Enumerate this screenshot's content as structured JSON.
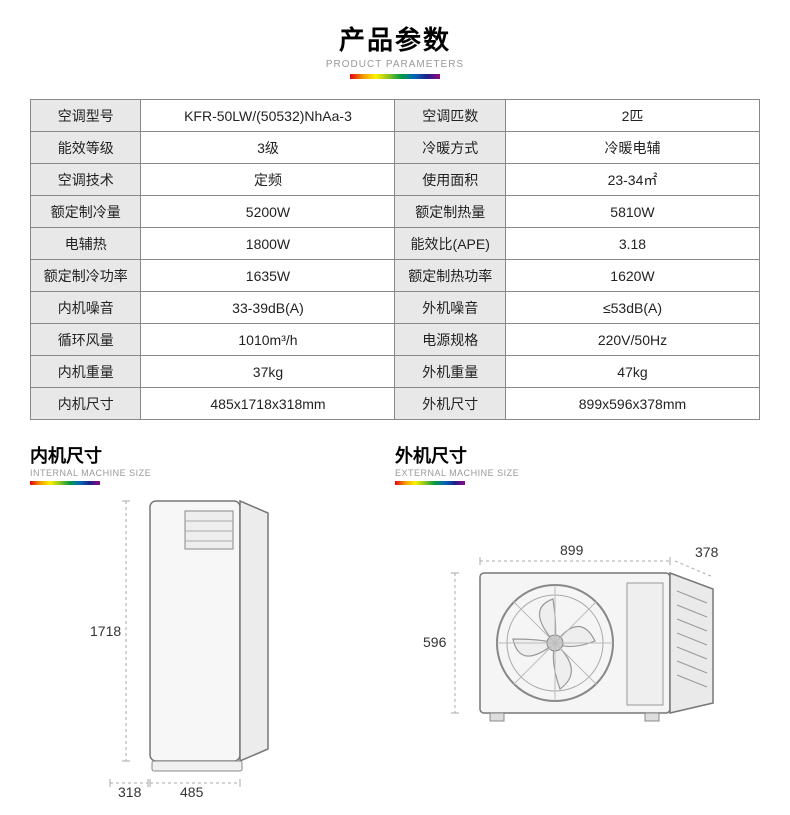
{
  "header": {
    "title_cn": "产品参数",
    "title_en": "PRODUCT PARAMETERS"
  },
  "spec_rows": [
    {
      "l1": "空调型号",
      "v1": "KFR-50LW/(50532)NhAa-3",
      "l2": "空调匹数",
      "v2": "2匹"
    },
    {
      "l1": "能效等级",
      "v1": "3级",
      "l2": "冷暖方式",
      "v2": "冷暖电辅"
    },
    {
      "l1": "空调技术",
      "v1": "定频",
      "l2": "使用面积",
      "v2": "23-34㎡"
    },
    {
      "l1": "额定制冷量",
      "v1": "5200W",
      "l2": "额定制热量",
      "v2": "5810W"
    },
    {
      "l1": "电辅热",
      "v1": "1800W",
      "l2": "能效比(APE)",
      "v2": "3.18"
    },
    {
      "l1": "额定制冷功率",
      "v1": "1635W",
      "l2": "额定制热功率",
      "v2": "1620W"
    },
    {
      "l1": "内机噪音",
      "v1": "33-39dB(A)",
      "l2": "外机噪音",
      "v2": "≤53dB(A)"
    },
    {
      "l1": "循环风量",
      "v1": "1010m³/h",
      "l2": "电源规格",
      "v2": "220V/50Hz"
    },
    {
      "l1": "内机重量",
      "v1": "37kg",
      "l2": "外机重量",
      "v2": "47kg"
    },
    {
      "l1": "内机尺寸",
      "v1": "485x1718x318mm",
      "l2": "外机尺寸",
      "v2": "899x596x378mm"
    }
  ],
  "internal": {
    "title_cn": "内机尺寸",
    "title_en": "INTERNAL MACHINE SIZE",
    "height": "1718",
    "width": "485",
    "depth": "318",
    "stroke": "#666666",
    "fill": "#f7f7f7",
    "dim_color": "#999999"
  },
  "external": {
    "title_cn": "外机尺寸",
    "title_en": "EXTERNAL MACHINE SIZE",
    "width": "899",
    "height": "596",
    "depth": "378",
    "stroke": "#666666",
    "fill": "#f5f5f5",
    "dim_color": "#999999"
  },
  "colors": {
    "table_border": "#888888",
    "label_bg": "#e8e8e8",
    "text": "#222222"
  }
}
